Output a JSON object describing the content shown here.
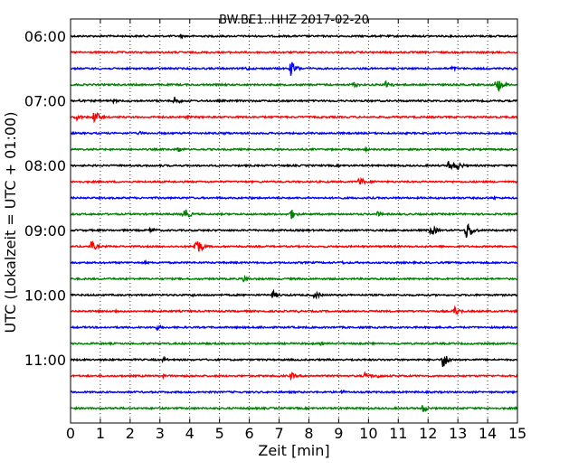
{
  "chart_data": {
    "type": "line",
    "title": "BW.BE1..HHZ 2017-02-20",
    "xlabel": "Zeit  [min]",
    "ylabel": "UTC (Lokalzeit = UTC + 01:00)",
    "xlim": [
      0,
      15
    ],
    "x_ticks": [
      "0",
      "1",
      "2",
      "3",
      "4",
      "5",
      "6",
      "7",
      "8",
      "9",
      "10",
      "11",
      "12",
      "13",
      "14",
      "15"
    ],
    "y_tick_labels": [
      "06:00",
      "07:00",
      "08:00",
      "09:00",
      "10:00",
      "11:00"
    ],
    "grid": "vertical dotted",
    "series_colors": [
      "#000000",
      "#ff0000",
      "#0000ff",
      "#008000"
    ],
    "traces": [
      {
        "start": "06:00",
        "color": "#000000",
        "events": [
          [
            3.7,
            2
          ]
        ]
      },
      {
        "start": "06:15",
        "color": "#ff0000",
        "events": []
      },
      {
        "start": "06:30",
        "color": "#0000ff",
        "events": [
          [
            5.9,
            2.5
          ],
          [
            7.4,
            9
          ],
          [
            12.8,
            3
          ],
          [
            14.8,
            2
          ]
        ]
      },
      {
        "start": "06:45",
        "color": "#008000",
        "events": [
          [
            9.5,
            4
          ],
          [
            10.6,
            6
          ],
          [
            14.3,
            10
          ],
          [
            5.2,
            1.5
          ]
        ]
      },
      {
        "start": "07:00",
        "color": "#000000",
        "events": [
          [
            1.4,
            3
          ],
          [
            3.5,
            5
          ],
          [
            0.3,
            2
          ]
        ]
      },
      {
        "start": "07:15",
        "color": "#ff0000",
        "events": [
          [
            0.2,
            4
          ],
          [
            0.8,
            8
          ],
          [
            3.9,
            2
          ]
        ]
      },
      {
        "start": "07:30",
        "color": "#0000ff",
        "events": [
          [
            2.3,
            2.5
          ],
          [
            5.2,
            2
          ]
        ]
      },
      {
        "start": "07:45",
        "color": "#008000",
        "events": [
          [
            3.6,
            4
          ],
          [
            9.9,
            2
          ],
          [
            12.8,
            1.5
          ]
        ]
      },
      {
        "start": "08:00",
        "color": "#000000",
        "events": [
          [
            12.7,
            7
          ],
          [
            13.0,
            5
          ],
          [
            2.5,
            1.5
          ]
        ]
      },
      {
        "start": "08:15",
        "color": "#ff0000",
        "events": [
          [
            9.7,
            6
          ],
          [
            10.2,
            2
          ]
        ]
      },
      {
        "start": "08:30",
        "color": "#0000ff",
        "events": [
          [
            6.0,
            2
          ],
          [
            14.2,
            2
          ]
        ]
      },
      {
        "start": "08:45",
        "color": "#008000",
        "events": [
          [
            3.8,
            8
          ],
          [
            7.4,
            6
          ],
          [
            10.3,
            3
          ]
        ]
      },
      {
        "start": "09:00",
        "color": "#000000",
        "events": [
          [
            2.7,
            4
          ],
          [
            12.1,
            7
          ],
          [
            13.3,
            12
          ],
          [
            6.0,
            1.5
          ]
        ]
      },
      {
        "start": "09:15",
        "color": "#ff0000",
        "events": [
          [
            0.7,
            6
          ],
          [
            4.2,
            12
          ],
          [
            15.0,
            3
          ]
        ]
      },
      {
        "start": "09:30",
        "color": "#0000ff",
        "events": [
          [
            2.5,
            2
          ],
          [
            9.1,
            2
          ]
        ]
      },
      {
        "start": "09:45",
        "color": "#008000",
        "events": [
          [
            5.8,
            4
          ]
        ]
      },
      {
        "start": "10:00",
        "color": "#000000",
        "events": [
          [
            6.8,
            5
          ],
          [
            8.2,
            5
          ],
          [
            4.1,
            2
          ]
        ]
      },
      {
        "start": "10:15",
        "color": "#ff0000",
        "events": [
          [
            1.5,
            2
          ],
          [
            7.6,
            2
          ],
          [
            12.9,
            6
          ]
        ]
      },
      {
        "start": "10:30",
        "color": "#0000ff",
        "events": [
          [
            2.9,
            3
          ],
          [
            6.4,
            2
          ]
        ]
      },
      {
        "start": "10:45",
        "color": "#008000",
        "events": [
          [
            8.4,
            2
          ]
        ]
      },
      {
        "start": "11:00",
        "color": "#000000",
        "events": [
          [
            3.1,
            3
          ],
          [
            12.5,
            10
          ],
          [
            9.4,
            1.5
          ]
        ]
      },
      {
        "start": "11:15",
        "color": "#ff0000",
        "events": [
          [
            3.1,
            2
          ],
          [
            7.4,
            4
          ],
          [
            9.9,
            5
          ],
          [
            10.3,
            3
          ]
        ]
      },
      {
        "start": "11:30",
        "color": "#0000ff",
        "events": [
          [
            9.1,
            2.5
          ]
        ]
      },
      {
        "start": "11:45",
        "color": "#008000",
        "events": [
          [
            1.4,
            2
          ],
          [
            11.8,
            5
          ]
        ]
      }
    ]
  }
}
